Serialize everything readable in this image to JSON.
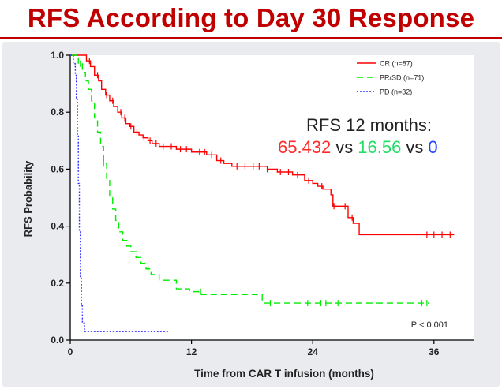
{
  "slide_title": "RFS According to Day 30 Response",
  "chart_data": {
    "type": "line",
    "subtype": "kaplan-meier",
    "xlabel": "Time from CAR T infusion (months)",
    "ylabel": "RFS Probability",
    "xlim": [
      0,
      40
    ],
    "ylim": [
      0,
      1
    ],
    "xticks": [
      0,
      12,
      24,
      36
    ],
    "xtick_labels": [
      "0",
      "12",
      "24",
      "36"
    ],
    "yticks": [
      0,
      0.2,
      0.4,
      0.6,
      0.8,
      1.0
    ],
    "ytick_labels": [
      "0.0",
      "0.2",
      "0.4",
      "0.6",
      "0.8",
      "1.0"
    ],
    "grid": false,
    "legend_position": "top-right",
    "series": [
      {
        "name": "CR (n=87)",
        "color": "#ff0000",
        "dash": "solid",
        "points": [
          [
            0,
            1.0
          ],
          [
            1.2,
            1.0
          ],
          [
            1.6,
            0.98
          ],
          [
            2.0,
            0.96
          ],
          [
            2.4,
            0.93
          ],
          [
            2.8,
            0.91
          ],
          [
            3.1,
            0.88
          ],
          [
            3.5,
            0.86
          ],
          [
            3.9,
            0.84
          ],
          [
            4.3,
            0.82
          ],
          [
            4.7,
            0.8
          ],
          [
            5.1,
            0.78
          ],
          [
            5.5,
            0.76
          ],
          [
            5.9,
            0.75
          ],
          [
            6.3,
            0.73
          ],
          [
            6.8,
            0.72
          ],
          [
            7.2,
            0.71
          ],
          [
            7.7,
            0.7
          ],
          [
            8.1,
            0.69
          ],
          [
            8.8,
            0.68
          ],
          [
            10.5,
            0.67
          ],
          [
            12.0,
            0.66
          ],
          [
            13.5,
            0.65
          ],
          [
            14.5,
            0.63
          ],
          [
            15.2,
            0.62
          ],
          [
            16.0,
            0.61
          ],
          [
            18.5,
            0.61
          ],
          [
            19.5,
            0.6
          ],
          [
            20.5,
            0.59
          ],
          [
            22.0,
            0.58
          ],
          [
            23.2,
            0.56
          ],
          [
            24.0,
            0.55
          ],
          [
            24.5,
            0.54
          ],
          [
            25.0,
            0.53
          ],
          [
            25.8,
            0.51
          ],
          [
            26.0,
            0.47
          ],
          [
            27.0,
            0.47
          ],
          [
            27.5,
            0.43
          ],
          [
            28.0,
            0.41
          ],
          [
            28.6,
            0.37
          ],
          [
            38.0,
            0.37
          ]
        ],
        "censor_x": [
          1.9,
          2.7,
          3.6,
          4.2,
          5.0,
          5.4,
          6.0,
          6.6,
          7.3,
          7.9,
          8.5,
          9.2,
          10.0,
          10.9,
          11.5,
          12.8,
          13.3,
          14.0,
          14.9,
          16.5,
          17.3,
          18.1,
          18.7,
          19.5,
          20.8,
          21.6,
          22.5,
          23.6,
          24.9,
          26.1,
          27.2,
          27.9,
          35.3,
          36.0,
          36.8,
          37.6
        ]
      },
      {
        "name": "PR/SD (n=71)",
        "color": "#00ee00",
        "dash": "dashed",
        "points": [
          [
            0,
            1.0
          ],
          [
            0.5,
            1.0
          ],
          [
            0.8,
            0.97
          ],
          [
            1.2,
            0.94
          ],
          [
            1.5,
            0.91
          ],
          [
            1.8,
            0.88
          ],
          [
            2.1,
            0.84
          ],
          [
            2.4,
            0.78
          ],
          [
            2.7,
            0.73
          ],
          [
            3.0,
            0.68
          ],
          [
            3.3,
            0.62
          ],
          [
            3.6,
            0.56
          ],
          [
            3.9,
            0.5
          ],
          [
            4.2,
            0.46
          ],
          [
            4.5,
            0.42
          ],
          [
            4.8,
            0.38
          ],
          [
            5.2,
            0.35
          ],
          [
            5.6,
            0.33
          ],
          [
            6.0,
            0.31
          ],
          [
            6.5,
            0.29
          ],
          [
            7.0,
            0.27
          ],
          [
            7.5,
            0.25
          ],
          [
            8.0,
            0.23
          ],
          [
            8.8,
            0.21
          ],
          [
            10.5,
            0.18
          ],
          [
            11.8,
            0.17
          ],
          [
            13.0,
            0.16
          ],
          [
            19.0,
            0.13
          ],
          [
            35.5,
            0.13
          ]
        ],
        "censor_x": [
          1.0,
          3.3,
          6.6,
          7.7,
          12.9,
          19.8,
          23.5,
          24.8,
          25.3,
          26.5,
          34.8,
          35.3
        ]
      },
      {
        "name": "PD (n=32)",
        "color": "#3333ff",
        "dash": "dotted",
        "points": [
          [
            0,
            1.0
          ],
          [
            0.3,
            0.97
          ],
          [
            0.5,
            0.93
          ],
          [
            0.6,
            0.85
          ],
          [
            0.7,
            0.72
          ],
          [
            0.8,
            0.55
          ],
          [
            0.9,
            0.38
          ],
          [
            1.0,
            0.22
          ],
          [
            1.1,
            0.12
          ],
          [
            1.2,
            0.06
          ],
          [
            1.4,
            0.03
          ],
          [
            9.8,
            0.03
          ]
        ],
        "censor_x": []
      }
    ],
    "annotations": {
      "rfs_heading": "RFS 12 months:",
      "rfs_values": [
        "65.432",
        "16.56",
        "0"
      ],
      "rfs_separator": "vs",
      "p_value": "P < 0.001"
    }
  }
}
